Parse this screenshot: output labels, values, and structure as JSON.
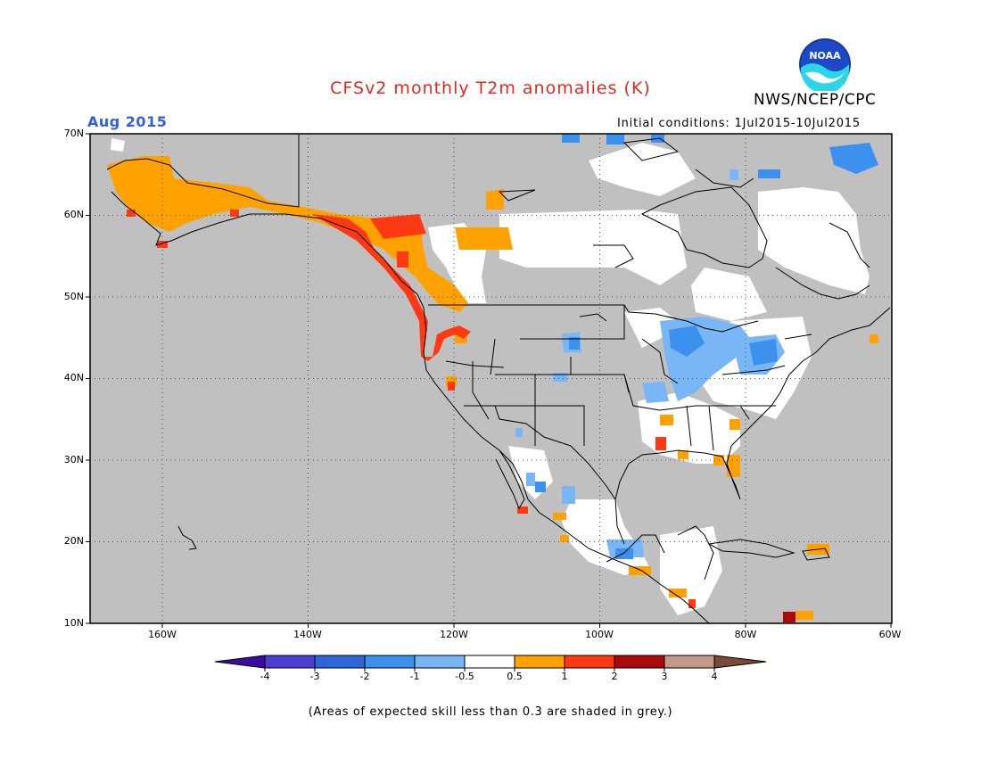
{
  "header": {
    "title": "CFSv2 monthly T2m anomalies (K)",
    "title_color": "#e8281e",
    "org": "NWS/NCEP/CPC",
    "logo_text": "NOAA",
    "month": "Aug 2015",
    "month_color": "#3060e0",
    "initial_conditions": "Initial conditions: 1Jul2015-10Jul2015"
  },
  "axes": {
    "lat_labels": [
      "70N",
      "60N",
      "50N",
      "40N",
      "30N",
      "20N",
      "10N"
    ],
    "lon_labels": [
      "160W",
      "140W",
      "120W",
      "100W",
      "80W",
      "60W"
    ]
  },
  "colorbar": {
    "labels": [
      "-4",
      "-3",
      "-2",
      "-1",
      "-0.5",
      "0.5",
      "1",
      "2",
      "3",
      "4"
    ],
    "colors": [
      "#3c0ba0",
      "#4a3fd0",
      "#2d66d8",
      "#3d91ee",
      "#78b6f5",
      "#ffffff",
      "#ffa200",
      "#ff3a12",
      "#aa0a0a",
      "#c39a8a",
      "#7a4a3a"
    ]
  },
  "map": {
    "ocean_color": "#c0c0c0",
    "land_color": "#c0c0c0"
  },
  "footer": {
    "note": "(Areas of expected skill less than 0.3 are shaded in grey.)"
  }
}
